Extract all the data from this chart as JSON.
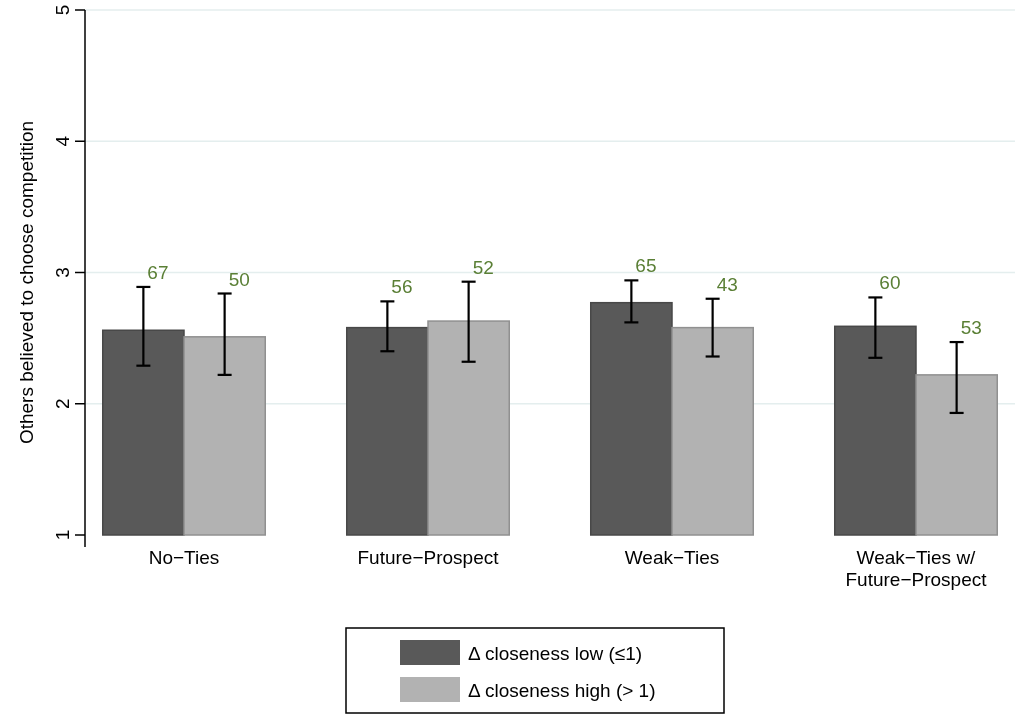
{
  "chart_data": {
    "type": "bar",
    "ylabel": "Others believed to choose competition",
    "categories": [
      "No−Ties",
      "Future−Prospect",
      "Weak−Ties",
      "Weak−Ties w/ Future−Prospect"
    ],
    "series": [
      {
        "name": "Δ closeness low (≤1)",
        "color": "#595959",
        "values": [
          2.56,
          2.58,
          2.77,
          2.59
        ],
        "errors": [
          [
            2.29,
            2.89
          ],
          [
            2.4,
            2.78
          ],
          [
            2.62,
            2.94
          ],
          [
            2.35,
            2.81
          ]
        ]
      },
      {
        "name": "Δ closeness high (> 1)",
        "color": "#b2b2b2",
        "values": [
          2.51,
          2.63,
          2.58,
          2.22
        ],
        "errors": [
          [
            2.22,
            2.84
          ],
          [
            2.32,
            2.93
          ],
          [
            2.36,
            2.8
          ],
          [
            1.93,
            2.47
          ]
        ]
      }
    ],
    "annotations": [
      "67",
      "50",
      "56",
      "52",
      "65",
      "43",
      "60",
      "53"
    ],
    "ylim": [
      1,
      5
    ],
    "yticks": [
      1,
      2,
      3,
      4,
      5
    ],
    "grid": "y",
    "legend": "bottom"
  }
}
